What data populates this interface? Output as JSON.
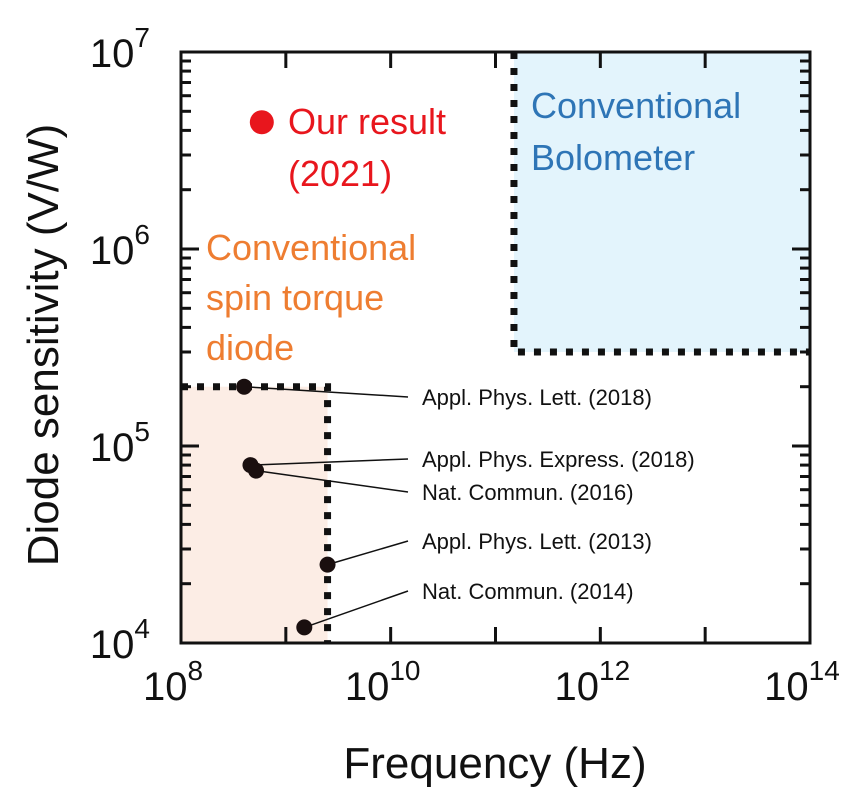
{
  "chart_data": {
    "type": "scatter",
    "xlabel": "Frequency (Hz)",
    "ylabel": "Diode sensitivity (V/W)",
    "xscale": "log",
    "yscale": "log",
    "xlim": [
      100000000.0,
      100000000000000.0
    ],
    "ylim": [
      10000.0,
      10000000.0
    ],
    "xticks": [
      {
        "value": 100000000.0,
        "base": "10",
        "exp": "8"
      },
      {
        "value": 10000000000.0,
        "base": "10",
        "exp": "10"
      },
      {
        "value": 1000000000000.0,
        "base": "10",
        "exp": "12"
      },
      {
        "value": 100000000000000.0,
        "base": "10",
        "exp": "14"
      }
    ],
    "yticks": [
      {
        "value": 10000.0,
        "base": "10",
        "exp": "4"
      },
      {
        "value": 100000.0,
        "base": "10",
        "exp": "5"
      },
      {
        "value": 1000000.0,
        "base": "10",
        "exp": "6"
      },
      {
        "value": 10000000.0,
        "base": "10",
        "exp": "7"
      }
    ],
    "regions": [
      {
        "name": "Conventional spin torque diode",
        "lines": [
          "Conventional",
          "spin torque",
          "diode"
        ],
        "x": [
          100000000.0,
          2500000000.0
        ],
        "y": [
          10000.0,
          200000.0
        ],
        "fill": "#fcede5",
        "color": "#ee7d31"
      },
      {
        "name": "Conventional Bolometer",
        "lines": [
          "Conventional",
          "Bolometer"
        ],
        "x": [
          150000000000.0,
          100000000000000.0
        ],
        "y": [
          300000.0,
          10000000.0
        ],
        "fill": "#e3f4fc",
        "color": "#2e75b6"
      }
    ],
    "highlight": {
      "lines": [
        "Our result",
        "(2021)"
      ],
      "x": 590000000.0,
      "y": 4400000.0,
      "color": "#e8161d"
    },
    "points": [
      {
        "label": "Appl. Phys. Lett. (2018)",
        "x": 400000000.0,
        "y": 200000.0
      },
      {
        "label": "Appl. Phys. Express. (2018)",
        "x": 460000000.0,
        "y": 80000.0
      },
      {
        "label": "Nat. Commun. (2016)",
        "x": 520000000.0,
        "y": 75000.0
      },
      {
        "label": "Appl. Phys. Lett. (2013)",
        "x": 2500000000.0,
        "y": 25000.0
      },
      {
        "label": "Nat. Commun. (2014)",
        "x": 1500000000.0,
        "y": 12000.0
      }
    ]
  }
}
